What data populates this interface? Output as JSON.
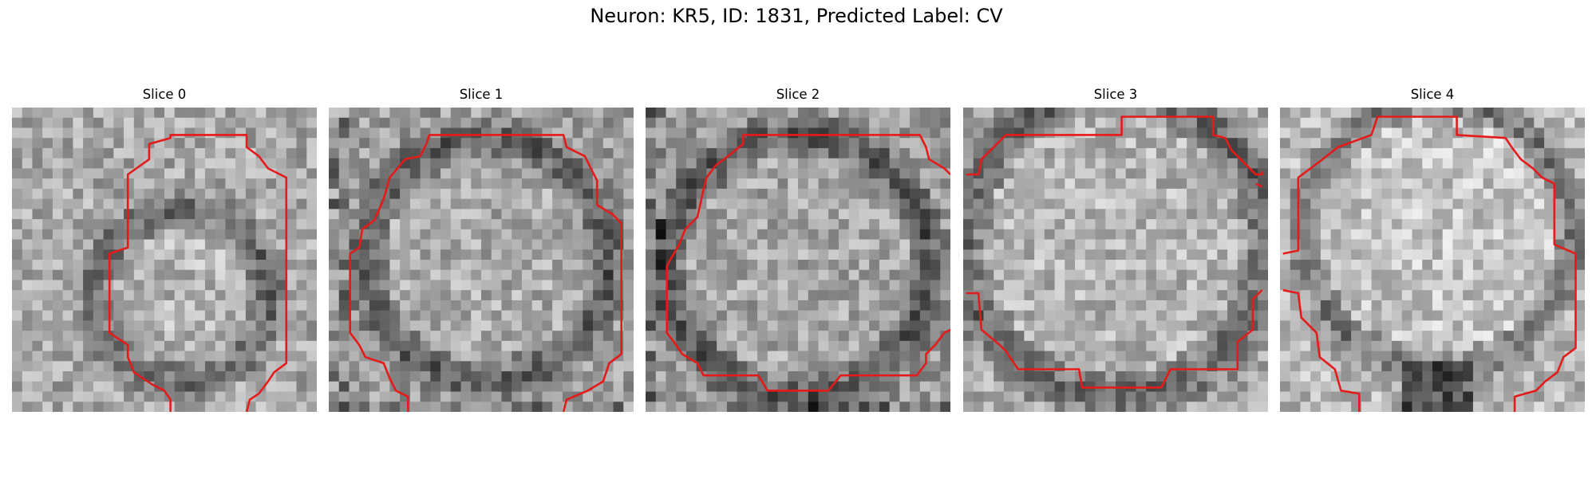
{
  "figure": {
    "title": "Neuron: KR5, ID: 1831, Predicted Label: CV"
  },
  "colors": {
    "background": "#ffffff",
    "contour": "#e51a1a",
    "colormap": "grayscale"
  },
  "panels": [
    {
      "title": "Slice 0",
      "pattern": "ring",
      "center": [
        0.56,
        0.62
      ],
      "inner_radius": 0.22,
      "ring_width": 0.13,
      "base_brightness": 0.66,
      "contour": [
        [
          0.52,
          1
        ],
        [
          0.52,
          0.96
        ],
        [
          0.5,
          0.93
        ],
        [
          0.46,
          0.91
        ],
        [
          0.4,
          0.87
        ],
        [
          0.38,
          0.82
        ],
        [
          0.38,
          0.78
        ],
        [
          0.32,
          0.74
        ],
        [
          0.32,
          0.48
        ],
        [
          0.38,
          0.46
        ],
        [
          0.38,
          0.22
        ],
        [
          0.45,
          0.17
        ],
        [
          0.45,
          0.12
        ],
        [
          0.52,
          0.1
        ],
        [
          0.52,
          0.09
        ],
        [
          0.77,
          0.09
        ],
        [
          0.77,
          0.13
        ],
        [
          0.81,
          0.16
        ],
        [
          0.84,
          0.2
        ],
        [
          0.9,
          0.23
        ],
        [
          0.9,
          0.84
        ],
        [
          0.86,
          0.87
        ],
        [
          0.84,
          0.9
        ],
        [
          0.81,
          0.94
        ],
        [
          0.78,
          0.96
        ],
        [
          0.77,
          1
        ]
      ]
    },
    {
      "title": "Slice 1",
      "pattern": "annulus",
      "center": [
        0.52,
        0.5
      ],
      "inner_radius": 0.33,
      "ring_width": 0.14,
      "base_brightness": 0.62,
      "contour": [
        [
          0.26,
          1
        ],
        [
          0.26,
          0.95
        ],
        [
          0.22,
          0.93
        ],
        [
          0.2,
          0.89
        ],
        [
          0.18,
          0.84
        ],
        [
          0.12,
          0.82
        ],
        [
          0.1,
          0.78
        ],
        [
          0.07,
          0.74
        ],
        [
          0.07,
          0.48
        ],
        [
          0.1,
          0.46
        ],
        [
          0.11,
          0.4
        ],
        [
          0.15,
          0.37
        ],
        [
          0.18,
          0.3
        ],
        [
          0.2,
          0.23
        ],
        [
          0.25,
          0.17
        ],
        [
          0.3,
          0.16
        ],
        [
          0.32,
          0.12
        ],
        [
          0.33,
          0.09
        ],
        [
          0.77,
          0.09
        ],
        [
          0.78,
          0.13
        ],
        [
          0.84,
          0.16
        ],
        [
          0.86,
          0.2
        ],
        [
          0.88,
          0.24
        ],
        [
          0.88,
          0.32
        ],
        [
          0.93,
          0.35
        ],
        [
          0.96,
          0.38
        ],
        [
          0.96,
          0.81
        ],
        [
          0.92,
          0.84
        ],
        [
          0.9,
          0.9
        ],
        [
          0.85,
          0.93
        ],
        [
          0.78,
          0.96
        ],
        [
          0.77,
          1
        ]
      ]
    },
    {
      "title": "Slice 2",
      "pattern": "annulus",
      "center": [
        0.5,
        0.52
      ],
      "inner_radius": 0.36,
      "ring_width": 0.14,
      "base_brightness": 0.6,
      "contour": [
        [
          1,
          0.22
        ],
        [
          0.98,
          0.2
        ],
        [
          0.93,
          0.17
        ],
        [
          0.92,
          0.13
        ],
        [
          0.9,
          0.09
        ],
        [
          0.32,
          0.09
        ],
        [
          0.32,
          0.12
        ],
        [
          0.27,
          0.16
        ],
        [
          0.23,
          0.19
        ],
        [
          0.2,
          0.23
        ],
        [
          0.19,
          0.27
        ],
        [
          0.17,
          0.36
        ],
        [
          0.13,
          0.4
        ],
        [
          0.11,
          0.45
        ],
        [
          0.07,
          0.52
        ],
        [
          0.07,
          0.74
        ],
        [
          0.1,
          0.78
        ],
        [
          0.12,
          0.81
        ],
        [
          0.17,
          0.84
        ],
        [
          0.19,
          0.88
        ],
        [
          0.37,
          0.88
        ],
        [
          0.4,
          0.93
        ],
        [
          0.6,
          0.93
        ],
        [
          0.64,
          0.88
        ],
        [
          0.89,
          0.88
        ],
        [
          0.92,
          0.84
        ],
        [
          0.92,
          0.81
        ],
        [
          0.95,
          0.78
        ],
        [
          0.98,
          0.74
        ],
        [
          1,
          0.73
        ]
      ]
    },
    {
      "title": "Slice 3",
      "pattern": "bright-disk",
      "center": [
        0.5,
        0.45
      ],
      "inner_radius": 0.42,
      "ring_width": 0.16,
      "base_brightness": 0.66,
      "contour": [
        [
          0.01,
          0.22
        ],
        [
          0.05,
          0.22
        ],
        [
          0.06,
          0.17
        ],
        [
          0.1,
          0.13
        ],
        [
          0.14,
          0.09
        ],
        [
          0.52,
          0.09
        ],
        [
          0.52,
          0.03
        ],
        [
          0.82,
          0.03
        ],
        [
          0.82,
          0.09
        ],
        [
          0.86,
          0.1
        ],
        [
          0.88,
          0.14
        ],
        [
          0.91,
          0.17
        ],
        [
          0.94,
          0.2
        ],
        [
          0.96,
          0.22
        ],
        [
          0.98,
          0.22
        ],
        [
          0.98,
          0.21
        ],
        "break",
        [
          0.01,
          0.61
        ],
        [
          0.05,
          0.61
        ],
        [
          0.06,
          0.73
        ],
        [
          0.12,
          0.78
        ],
        [
          0.14,
          0.8
        ],
        [
          0.18,
          0.86
        ],
        [
          0.38,
          0.86
        ],
        [
          0.39,
          0.92
        ],
        [
          0.65,
          0.92
        ],
        [
          0.68,
          0.86
        ],
        [
          0.9,
          0.86
        ],
        [
          0.9,
          0.77
        ],
        [
          0.95,
          0.73
        ],
        [
          0.95,
          0.63
        ],
        [
          0.98,
          0.6
        ],
        "break",
        [
          0.98,
          0.26
        ],
        [
          0.96,
          0.25
        ]
      ]
    },
    {
      "title": "Slice 4",
      "pattern": "bright-disk-dark-bottom",
      "center": [
        0.52,
        0.42
      ],
      "inner_radius": 0.38,
      "ring_width": 0.12,
      "base_brightness": 0.72,
      "contour": [
        [
          0.26,
          1
        ],
        [
          0.26,
          0.94
        ],
        [
          0.2,
          0.93
        ],
        [
          0.18,
          0.86
        ],
        [
          0.13,
          0.82
        ],
        [
          0.12,
          0.74
        ],
        [
          0.07,
          0.69
        ],
        [
          0.06,
          0.61
        ],
        [
          0.01,
          0.6
        ],
        "break",
        [
          0.01,
          0.48
        ],
        [
          0.06,
          0.47
        ],
        [
          0.06,
          0.23
        ],
        [
          0.1,
          0.2
        ],
        [
          0.14,
          0.17
        ],
        [
          0.19,
          0.13
        ],
        [
          0.3,
          0.09
        ],
        [
          0.32,
          0.03
        ],
        [
          0.58,
          0.03
        ],
        [
          0.58,
          0.09
        ],
        [
          0.74,
          0.1
        ],
        [
          0.76,
          0.13
        ],
        [
          0.79,
          0.17
        ],
        [
          0.83,
          0.2
        ],
        [
          0.86,
          0.23
        ],
        [
          0.9,
          0.25
        ],
        [
          0.9,
          0.45
        ],
        [
          0.97,
          0.48
        ],
        [
          0.97,
          0.79
        ],
        [
          0.93,
          0.82
        ],
        [
          0.91,
          0.87
        ],
        [
          0.87,
          0.9
        ],
        [
          0.84,
          0.93
        ],
        [
          0.77,
          0.95
        ],
        [
          0.77,
          1
        ]
      ]
    }
  ]
}
